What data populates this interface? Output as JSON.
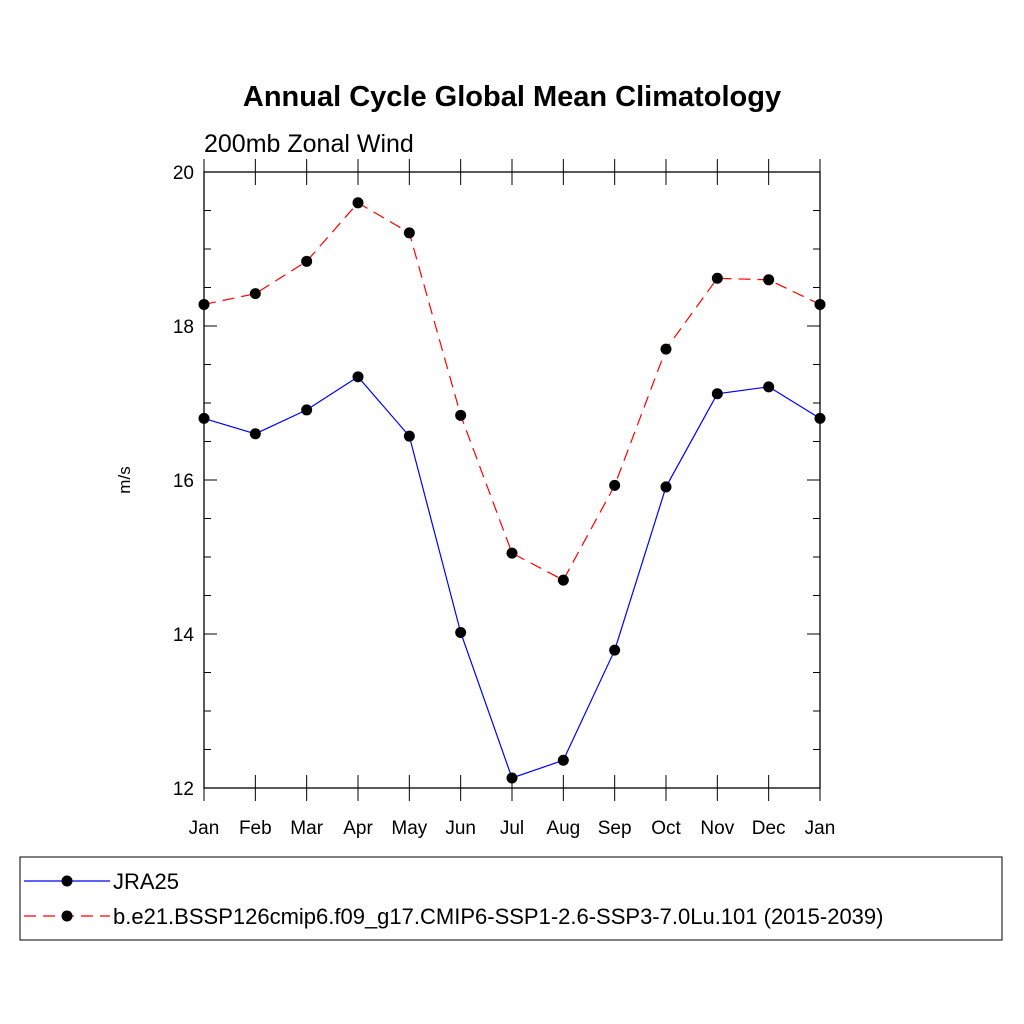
{
  "chart_data": {
    "type": "line",
    "title": "Annual Cycle Global Mean Climatology",
    "subtitle": "200mb Zonal Wind",
    "xlabel": "",
    "ylabel": "m/s",
    "categories": [
      "Jan",
      "Feb",
      "Mar",
      "Apr",
      "May",
      "Jun",
      "Jul",
      "Aug",
      "Sep",
      "Oct",
      "Nov",
      "Dec",
      "Jan"
    ],
    "ylim": [
      12,
      20
    ],
    "yticks": [
      "12",
      "14",
      "16",
      "18",
      "20"
    ],
    "grid": false,
    "legend_position": "bottom",
    "series": [
      {
        "name": "JRA25",
        "color": "#0000ff",
        "line_style": "solid",
        "marker": "filled-circle",
        "values": [
          16.8,
          16.6,
          16.91,
          17.34,
          16.57,
          14.02,
          12.13,
          12.36,
          13.79,
          15.91,
          17.12,
          17.21,
          16.8
        ]
      },
      {
        "name": "b.e21.BSSP126cmip6.f09_g17.CMIP6-SSP1-2.6-SSP3-7.0Lu.101 (2015-2039)",
        "color": "#ff0000",
        "line_style": "dashed",
        "marker": "filled-circle",
        "values": [
          18.28,
          18.42,
          18.84,
          19.6,
          19.21,
          16.84,
          15.05,
          14.7,
          15.93,
          17.7,
          18.62,
          18.6,
          18.28
        ]
      }
    ]
  }
}
